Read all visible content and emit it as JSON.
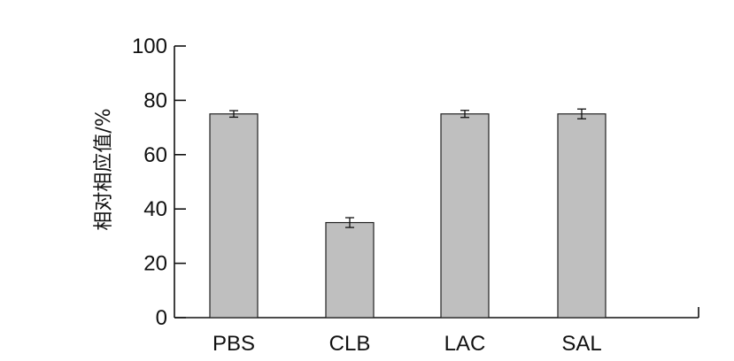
{
  "chart_data": {
    "type": "bar",
    "title": "",
    "xlabel": "",
    "ylabel": "相对相应值/%",
    "categories": [
      "PBS",
      "CLB",
      "LAC",
      "SAL"
    ],
    "values": [
      75,
      35,
      75,
      75
    ],
    "errors": [
      1.2,
      1.8,
      1.3,
      1.8
    ],
    "ylim": [
      0,
      100
    ],
    "yticks": [
      0,
      20,
      40,
      60,
      80,
      100
    ],
    "grid": false,
    "bar_color": "#bfbfbf",
    "bar_edge_color": "#222222"
  }
}
